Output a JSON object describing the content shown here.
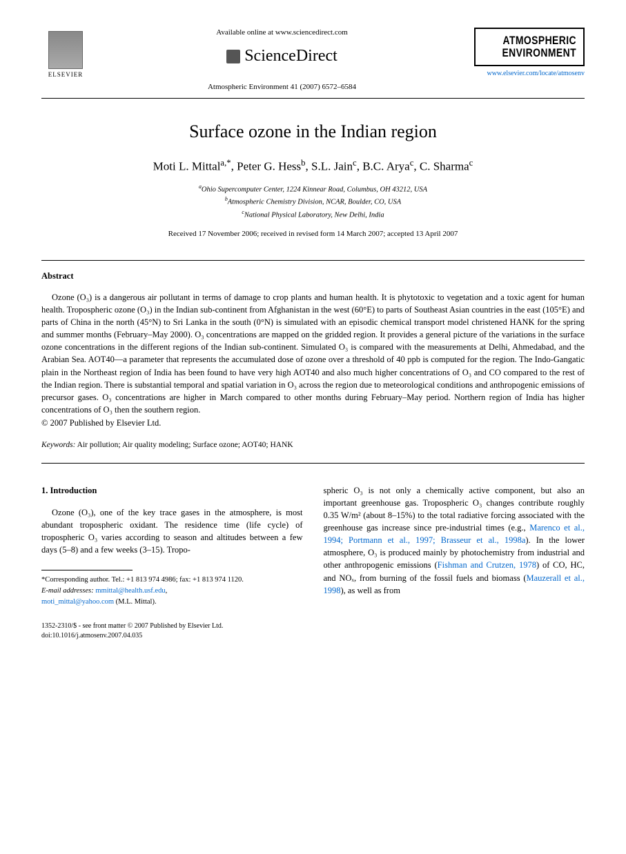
{
  "header": {
    "available_online": "Available online at www.sciencedirect.com",
    "sciencedirect": "ScienceDirect",
    "journal_ref": "Atmospheric Environment 41 (2007) 6572–6584",
    "elsevier_label": "ELSEVIER",
    "journal_logo_line1": "ATMOSPHERIC",
    "journal_logo_line2": "ENVIRONMENT",
    "journal_url": "www.elsevier.com/locate/atmosenv"
  },
  "article": {
    "title": "Surface ozone in the Indian region",
    "authors_html": "Moti L. Mittal<sup>a,*</sup>, Peter G. Hess<sup>b</sup>, S.L. Jain<sup>c</sup>, B.C. Arya<sup>c</sup>, C. Sharma<sup>c</sup>",
    "affiliations": {
      "a": "Ohio Supercomputer Center, 1224 Kinnear Road, Columbus, OH 43212, USA",
      "b": "Atmospheric Chemistry Division, NCAR, Boulder, CO, USA",
      "c": "National Physical Laboratory, New Delhi, India"
    },
    "dates": "Received 17 November 2006; received in revised form 14 March 2007; accepted 13 April 2007"
  },
  "abstract": {
    "heading": "Abstract",
    "body": "Ozone (O₃) is a dangerous air pollutant in terms of damage to crop plants and human health. It is phytotoxic to vegetation and a toxic agent for human health. Tropospheric ozone (O₃) in the Indian sub-continent from Afghanistan in the west (60°E) to parts of Southeast Asian countries in the east (105°E) and parts of China in the north (45°N) to Sri Lanka in the south (0°N) is simulated with an episodic chemical transport model christened HANK for the spring and summer months (February–May 2000). O₃ concentrations are mapped on the gridded region. It provides a general picture of the variations in the surface ozone concentrations in the different regions of the Indian sub-continent. Simulated O₃ is compared with the measurements at Delhi, Ahmedabad, and the Arabian Sea. AOT40—a parameter that represents the accumulated dose of ozone over a threshold of 40 ppb is computed for the region. The Indo-Gangatic plain in the Northeast region of India has been found to have very high AOT40 and also much higher concentrations of O₃ and CO compared to the rest of the Indian region. There is substantial temporal and spatial variation in O₃ across the region due to meteorological conditions and anthropogenic emissions of precursor gases. O₃ concentrations are higher in March compared to other months during February–May period. Northern region of India has higher concentrations of O₃ then the southern region.",
    "copyright": "© 2007 Published by Elsevier Ltd.",
    "keywords_label": "Keywords:",
    "keywords": "Air pollution; Air quality modeling; Surface ozone; AOT40; HANK"
  },
  "introduction": {
    "heading": "1. Introduction",
    "col1_para": "Ozone (O₃), one of the key trace gases in the atmosphere, is most abundant tropospheric oxidant. The residence time (life cycle) of tropospheric O₃ varies according to season and altitudes between a few days (5–8) and a few weeks (3–15). Tropo-",
    "col2_pre": "spheric O₃ is not only a chemically active component, but also an important greenhouse gas. Tropospheric O₃ changes contribute roughly 0.35 W/m² (about 8–15%) to the total radiative forcing associated with the greenhouse gas increase since pre-industrial times (e.g., ",
    "col2_ref1": "Marenco et al., 1994; Portmann et al., 1997; Brasseur et al., 1998a",
    "col2_mid1": "). In the lower atmosphere, O₃ is produced mainly by photochemistry from industrial and other anthropogenic emissions (",
    "col2_ref2": "Fishman and Crutzen, 1978",
    "col2_mid2": ") of CO, HC, and NOₓ, from burning of the fossil fuels and biomass (",
    "col2_ref3": "Mauzerall et al., 1998",
    "col2_post": "), as well as from"
  },
  "footnote": {
    "corresponding": "*Corresponding author. Tel.: +1 813 974 4986; fax: +1 813 974 1120.",
    "email_label": "E-mail addresses:",
    "email1": "mmittal@health.usf.edu",
    "email_sep": ", ",
    "email2": "moti_mittal@yahoo.com",
    "email_author": " (M.L. Mittal)."
  },
  "doi": {
    "line1": "1352-2310/$ - see front matter © 2007 Published by Elsevier Ltd.",
    "line2": "doi:10.1016/j.atmosenv.2007.04.035"
  },
  "colors": {
    "link": "#0066cc",
    "text": "#000000",
    "background": "#ffffff"
  }
}
